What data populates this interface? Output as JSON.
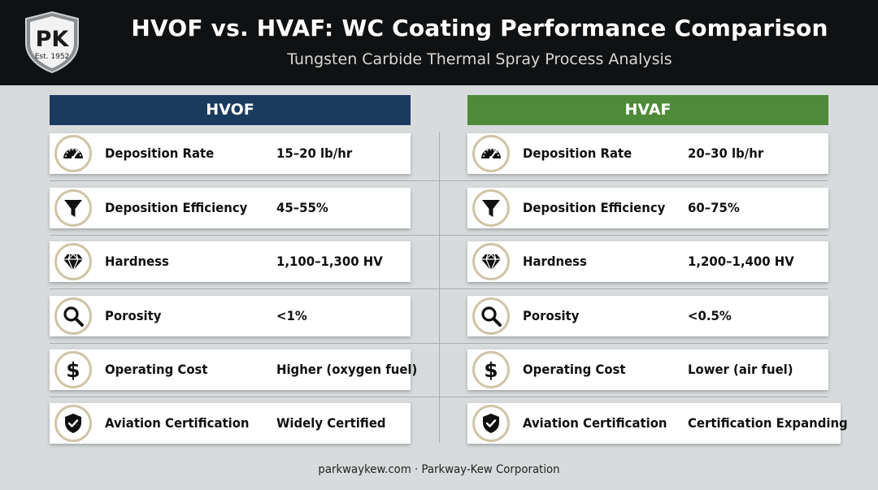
{
  "header": {
    "logo_text": "PK",
    "logo_est": "Est. 1952",
    "title": "HVOF vs. HVAF: WC Coating Performance Comparison",
    "subtitle": "Tungsten Carbide Thermal Spray Process Analysis"
  },
  "columns": [
    {
      "name": "HVOF",
      "color": "#1a3a5e",
      "rows": [
        {
          "icon": "gauge-icon",
          "label": "Deposition Rate",
          "value": "15–20 lb/hr"
        },
        {
          "icon": "funnel-icon",
          "label": "Deposition Efficiency",
          "value": "45–55%"
        },
        {
          "icon": "diamond-icon",
          "label": "Hardness",
          "value": "1,100–1,300 HV"
        },
        {
          "icon": "magnifier-icon",
          "label": "Porosity",
          "value": "<1%"
        },
        {
          "icon": "dollar-icon",
          "label": "Operating Cost",
          "value": "Higher (oxygen fuel)"
        },
        {
          "icon": "shield-check-icon",
          "label": "Aviation Certification",
          "value": "Widely Certified"
        }
      ]
    },
    {
      "name": "HVAF",
      "color": "#4f8a3a",
      "rows": [
        {
          "icon": "gauge-icon",
          "label": "Deposition Rate",
          "value": "20–30 lb/hr"
        },
        {
          "icon": "funnel-icon",
          "label": "Deposition Efficiency",
          "value": "60–75%"
        },
        {
          "icon": "diamond-icon",
          "label": "Hardness",
          "value": "1,200–1,400 HV"
        },
        {
          "icon": "magnifier-icon",
          "label": "Porosity",
          "value": "<0.5%"
        },
        {
          "icon": "dollar-icon",
          "label": "Operating Cost",
          "value": "Lower (air fuel)"
        },
        {
          "icon": "shield-check-icon",
          "label": "Aviation Certification",
          "value": "Certification Expanding"
        }
      ]
    }
  ],
  "footer": {
    "text": "parkwaykew.com · Parkway-Kew Corporation"
  }
}
